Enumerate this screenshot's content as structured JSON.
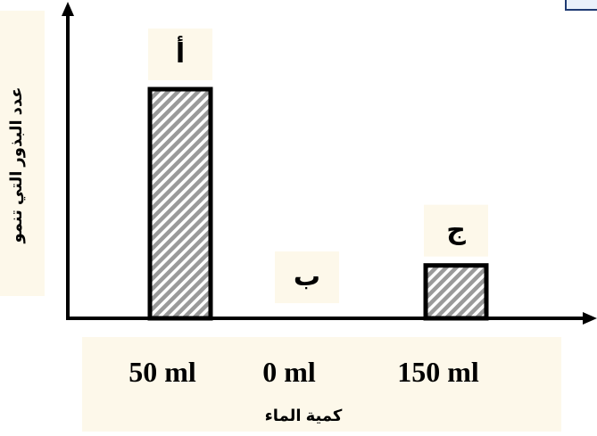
{
  "chart_data": {
    "type": "bar",
    "categories": [
      "50 ml",
      "0 ml",
      "150 ml"
    ],
    "bar_labels": [
      "أ",
      "ب",
      "ج"
    ],
    "values": [
      5.2,
      0,
      1.2
    ],
    "ylim": [
      0,
      6.9
    ],
    "xlabel": "كمية الماء",
    "ylabel": "عدد البذور التي تنمو",
    "bar_fill": "#9a9a9a",
    "bar_stripe": "#ffffff",
    "bar_border": "#000000",
    "label_bg": "#fdf8ea",
    "axis_color": "#000000"
  }
}
